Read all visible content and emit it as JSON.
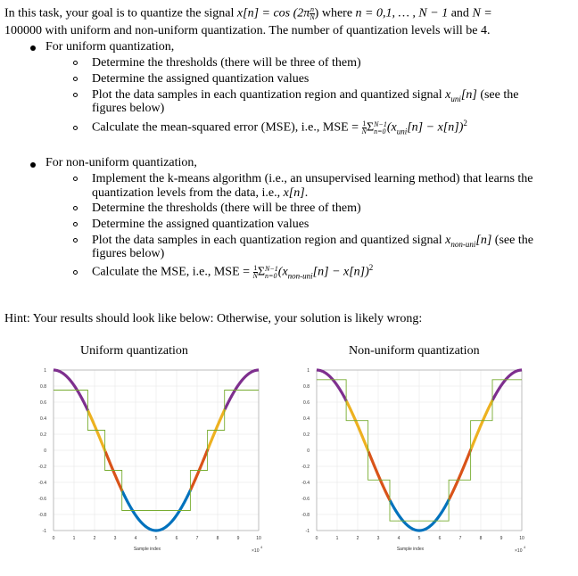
{
  "task": {
    "line1_a": "In this task, your goal is to quantize the signal ",
    "line1_b": " where ",
    "line1_c": " and ",
    "line2": "100000 with uniform and non-uniform quantization. The number of quantization levels will be 4.",
    "signal_expr": "x[n] = cos (2π",
    "signal_frac_num": "n",
    "signal_frac_den": "N",
    "signal_close": ")",
    "n_expr": "n = 0,1, … , N − 1",
    "N_expr": "N ="
  },
  "uniform": {
    "heading": "For uniform quantization,",
    "items": [
      "Determine the thresholds (there will be three of them)",
      "Determine the assigned quantization values",
      "Plot the data samples in each quantization region and quantized signal ",
      "figures below)",
      "Calculate the mean-squared error (MSE), i.e., MSE = "
    ],
    "plot_tail": "(see the",
    "xq_main": "x",
    "xq_sub": "uni",
    "xq_arg": "[n]",
    "mse_tail": "(x",
    "mse_sub": "uni",
    "mse_end": "[n] − x[n])",
    "mse_sup": "2"
  },
  "nonuniform": {
    "heading": "For non-uniform quantization,",
    "item1a": "Implement the k-means algorithm (i.e., an unsupervised learning method) that learns the",
    "item1b": "quantization levels from the data, i.e., ",
    "item1b_math": "x[n]",
    "item1b_end": ".",
    "item2": "Determine the thresholds (there will be three of them)",
    "item3": "Determine the assigned quantization values",
    "item4a": "Plot the data samples in each quantization region and quantized signal ",
    "item4_tail": "(see the",
    "item4b": "figures below)",
    "item5": "Calculate the MSE, i.e., MSE = ",
    "xq_sub": "non-uni",
    "mse_sub": "non-uni"
  },
  "sum_parts": {
    "frac_num": "1",
    "frac_den": "N",
    "sigma": "Σ",
    "sup": "N−1",
    "sub": "n=0"
  },
  "hint": "Hint: Your results should look like below: Otherwise, your solution is likely wrong:",
  "charts": {
    "left_title": "Uniform quantization",
    "right_title": "Non-uniform quantization",
    "xlabel": "Sample index",
    "exponent": "×10",
    "exponent_sup": "4",
    "y_ticks": [
      "1",
      "0.8",
      "0.6",
      "0.4",
      "0.2",
      "0",
      "-0.2",
      "-0.4",
      "-0.6",
      "-0.8",
      "-1"
    ],
    "x_ticks": [
      "0",
      "1",
      "2",
      "3",
      "4",
      "5",
      "6",
      "7",
      "8",
      "9",
      "10"
    ],
    "region_colors": [
      "#7E2F8E",
      "#EDB120",
      "#D95319",
      "#0072BD"
    ],
    "step_color": "#77AC30"
  },
  "chart_data": [
    {
      "type": "line",
      "title": "Uniform quantization",
      "xlabel": "Sample index",
      "ylabel": "",
      "x_scale": "x10^4",
      "xlim": [
        0,
        10
      ],
      "ylim": [
        -1,
        1
      ],
      "grid": true,
      "series": [
        {
          "values": "x[n] = cos(2*pi*n/N), N=100000, colored by quantization region"
        }
      ],
      "thresholds": [
        -0.5,
        0,
        0.5
      ],
      "levels": [
        -0.75,
        -0.25,
        0.25,
        0.75
      ]
    },
    {
      "type": "line",
      "title": "Non-uniform quantization",
      "xlabel": "Sample index",
      "ylabel": "",
      "x_scale": "x10^4",
      "xlim": [
        0,
        10
      ],
      "ylim": [
        -1,
        1
      ],
      "grid": true,
      "series": [
        {
          "values": "x[n] = cos(2*pi*n/N), N=100000, colored by quantization region"
        }
      ],
      "thresholds": [
        -0.62,
        0,
        0.62
      ],
      "levels": [
        -0.88,
        -0.37,
        0.37,
        0.88
      ]
    }
  ]
}
